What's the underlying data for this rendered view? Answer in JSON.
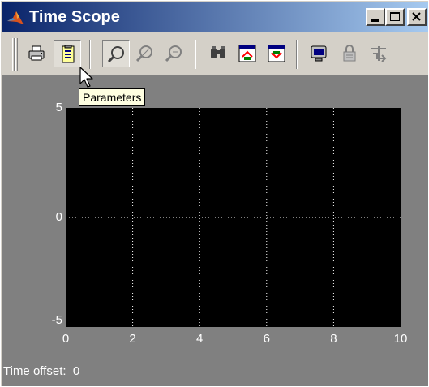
{
  "window": {
    "title": "Time Scope",
    "caption_buttons": [
      "minimize",
      "maximize",
      "close"
    ]
  },
  "toolbar": {
    "buttons": [
      {
        "name": "print",
        "icon": "printer-icon"
      },
      {
        "name": "parameters",
        "icon": "parameters-icon",
        "state": "pressed"
      },
      {
        "name": "zoom-in",
        "icon": "zoom-in-icon",
        "state": "pressed"
      },
      {
        "name": "zoom-x",
        "icon": "zoom-x-icon"
      },
      {
        "name": "zoom-y",
        "icon": "zoom-y-icon"
      },
      {
        "name": "autoscale",
        "icon": "binoculars-icon"
      },
      {
        "name": "save-axes-settings",
        "icon": "save-axes-icon"
      },
      {
        "name": "restore-axes-settings",
        "icon": "restore-axes-icon"
      },
      {
        "name": "floating-scope",
        "icon": "monitor-icon"
      },
      {
        "name": "lock-axes-selection",
        "icon": "lock-icon"
      },
      {
        "name": "signal-selection",
        "icon": "signal-selection-icon"
      }
    ]
  },
  "tooltip": {
    "text": "Parameters"
  },
  "status": {
    "label": "Time offset:",
    "value": "0"
  },
  "colors": {
    "titlebar_start": "#0a246a",
    "titlebar_end": "#a6caf0",
    "plot_bg": "#000000",
    "frame_bg": "#808080",
    "grid": "#ffffff"
  },
  "chart_data": {
    "type": "line",
    "title": "",
    "xlabel": "",
    "ylabel": "",
    "xlim": [
      0,
      10
    ],
    "ylim": [
      -5,
      5
    ],
    "xticks": [
      "0",
      "2",
      "4",
      "6",
      "8",
      "10"
    ],
    "yticks": [
      "5",
      "0",
      "-5"
    ],
    "grid": true,
    "series": []
  }
}
